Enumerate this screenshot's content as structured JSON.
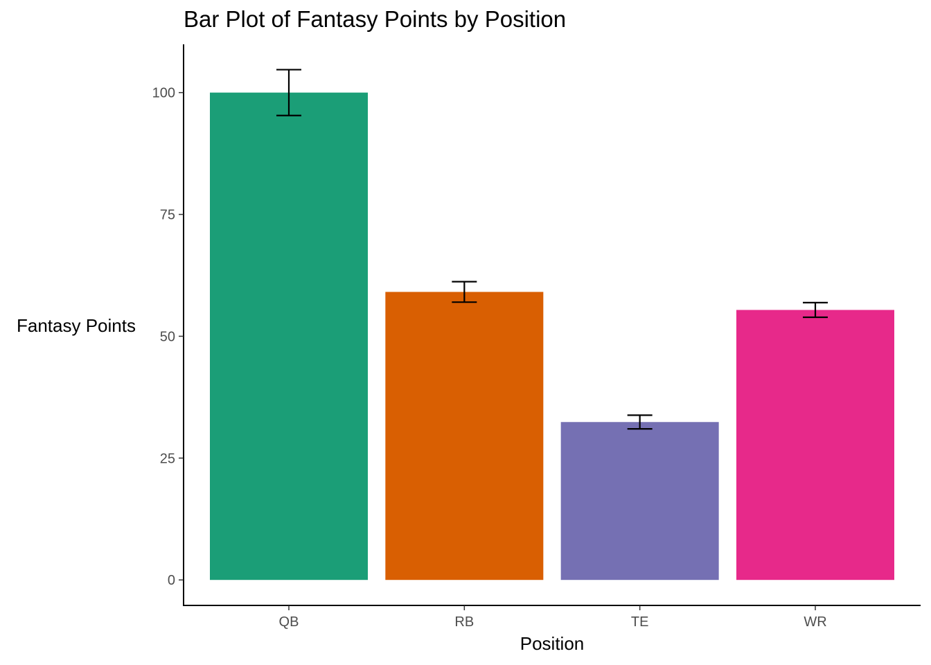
{
  "chart_data": {
    "type": "bar",
    "title": "Bar Plot of Fantasy Points by Position",
    "xlabel": "Position",
    "ylabel": "Fantasy Points",
    "categories": [
      "QB",
      "RB",
      "TE",
      "WR"
    ],
    "values": [
      100.0,
      59.1,
      32.4,
      55.4
    ],
    "error_bars": [
      {
        "low": 95.3,
        "high": 104.7
      },
      {
        "low": 57.0,
        "high": 61.2
      },
      {
        "low": 31.0,
        "high": 33.8
      },
      {
        "low": 53.9,
        "high": 56.9
      }
    ],
    "colors": [
      "#1b9e77",
      "#d95f02",
      "#7570b3",
      "#e7298a"
    ],
    "yticks": [
      0,
      25,
      50,
      75,
      100
    ],
    "ylim": [
      -5.23,
      109.9
    ],
    "grid": false,
    "legend": "none"
  }
}
